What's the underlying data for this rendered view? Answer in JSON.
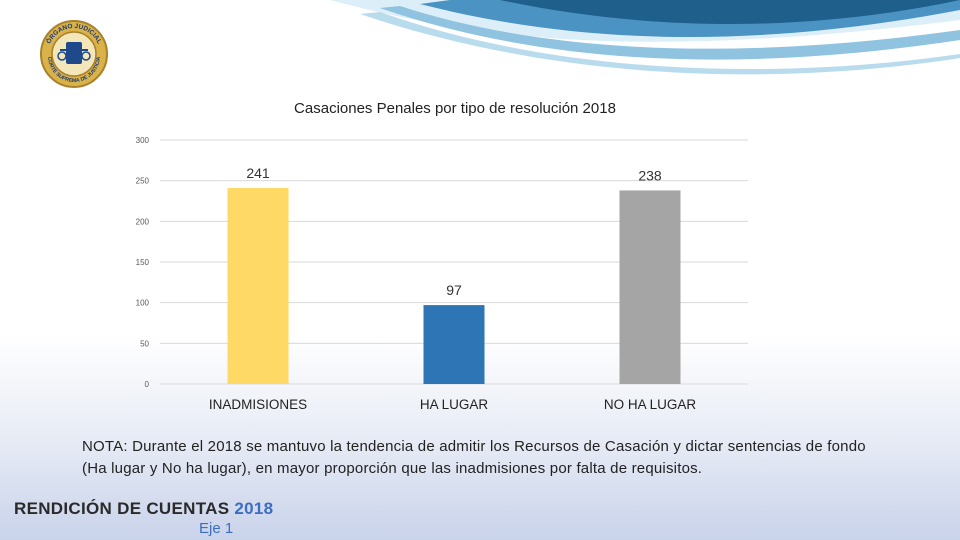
{
  "header": {
    "logo_text_top": "ÓRGANO JUDICIAL",
    "logo_text_bottom": "CORTE SUPREMA DE JUSTICIA"
  },
  "chart_data": {
    "type": "bar",
    "title": "Casaciones Penales  por tipo de resolución 2018",
    "categories": [
      "INADMISIONES",
      "HA LUGAR",
      "NO HA LUGAR"
    ],
    "values": [
      241,
      97,
      238
    ],
    "colors": [
      "#ffd966",
      "#2e75b6",
      "#a5a5a5"
    ],
    "ylim": [
      0,
      300
    ],
    "yticks": [
      0,
      50,
      100,
      150,
      200,
      250,
      300
    ],
    "xlabel": "",
    "ylabel": "",
    "grid": true,
    "legend": "none"
  },
  "note": {
    "text": "NOTA: Durante el 2018 se mantuvo la tendencia de admitir los Recursos de Casación y dictar sentencias de fondo (Ha lugar y No ha lugar), en mayor proporción que las inadmisiones por falta de requisitos."
  },
  "footer": {
    "title_part1": "RENDICIÓN DE CUENTAS",
    "title_part2": "2018",
    "subtitle": "Eje 1"
  },
  "theme": {
    "accent": "#3b6ec2",
    "wave_dark": "#1f5f8b",
    "wave_light": "#8fc3e0"
  }
}
